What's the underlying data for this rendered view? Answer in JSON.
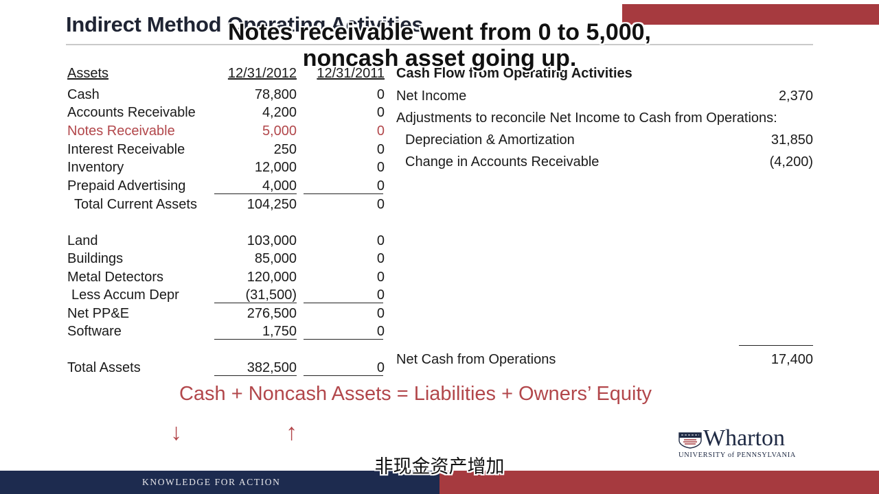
{
  "slide": {
    "title": "Indirect Method Operating Activities",
    "colors": {
      "accent_red": "#a63a3f",
      "navy": "#1d2b4f",
      "highlight_text": "#b2474b"
    }
  },
  "subtitle": {
    "line1": "Notes receivable went from 0 to 5,000,",
    "line2": "noncash asset going up.",
    "chinese": "非现金资产增加"
  },
  "balance_sheet": {
    "headers": {
      "label": "Assets",
      "col1": "12/31/2012",
      "col2": "12/31/2011"
    },
    "rows": [
      {
        "label": "Cash",
        "v2012": "78,800",
        "v2011": "0"
      },
      {
        "label": "Accounts Receivable",
        "v2012": "4,200",
        "v2011": "0"
      },
      {
        "label": "Notes Receivable",
        "v2012": "5,000",
        "v2011": "0",
        "highlight": true
      },
      {
        "label": "Interest Receivable",
        "v2012": "250",
        "v2011": "0"
      },
      {
        "label": "Inventory",
        "v2012": "12,000",
        "v2011": "0"
      },
      {
        "label": "Prepaid Advertising",
        "v2012": "4,000",
        "v2011": "0"
      },
      {
        "label": "Total Current Assets",
        "v2012": "104,250",
        "v2011": "0"
      },
      {
        "label": "Land",
        "v2012": "103,000",
        "v2011": "0"
      },
      {
        "label": "Buildings",
        "v2012": "85,000",
        "v2011": "0"
      },
      {
        "label": "Metal Detectors",
        "v2012": "120,000",
        "v2011": "0"
      },
      {
        "label": "Less Accum Depr",
        "v2012": "(31,500)",
        "v2011": "0"
      },
      {
        "label": "Net PP&E",
        "v2012": "276,500",
        "v2011": "0"
      },
      {
        "label": "Software",
        "v2012": "1,750",
        "v2011": "0"
      },
      {
        "label": "Total Assets",
        "v2012": "382,500",
        "v2011": "0"
      }
    ]
  },
  "cash_flow": {
    "header": "Cash Flow from Operating Activities",
    "net_income": {
      "label": "Net Income",
      "value": "2,370"
    },
    "adjustments_label": "Adjustments to reconcile Net Income to Cash from Operations:",
    "adjustments": [
      {
        "label": "Depreciation & Amortization",
        "value": "31,850"
      },
      {
        "label": "Change in Accounts Receivable",
        "value": "(4,200)"
      }
    ],
    "total": {
      "label": "Net Cash from Operations",
      "value": "17,400"
    }
  },
  "equation": {
    "text": "Cash + Noncash Assets = Liabilities + Owners’ Equity",
    "arrow_cash": "↓",
    "arrow_noncash": "↑"
  },
  "logo": {
    "name": "Wharton",
    "subline": "UNIVERSITY of PENNSYLVANIA",
    "icon": "penn-shield-icon"
  },
  "footer": {
    "tagline": "KNOWLEDGE FOR ACTION"
  }
}
